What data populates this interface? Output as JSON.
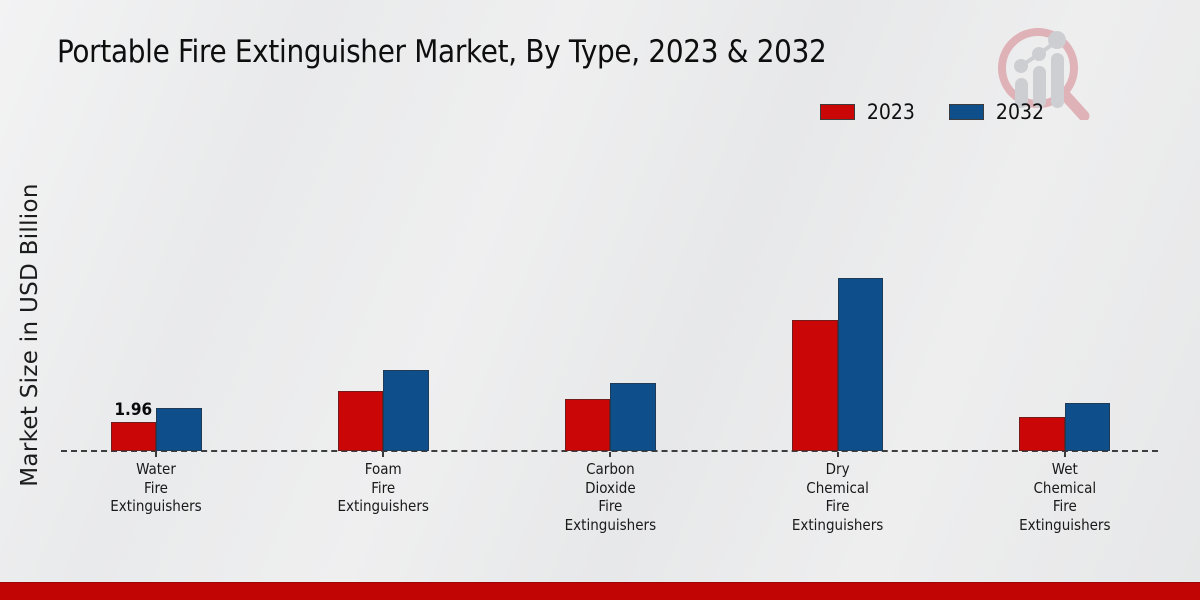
{
  "page": {
    "bottom_accent_color": "#c10505",
    "background_color": "#ebecec"
  },
  "branding": {
    "logo": "magnifier-bar-chart-logo",
    "logo_ring_color": "#c8737b",
    "logo_bar_color": "#b4b7be"
  },
  "chart_data": {
    "type": "bar",
    "title": "Portable Fire Extinguisher Market, By Type, 2023 & 2032",
    "xlabel": "",
    "ylabel": "Market Size in USD Billion",
    "categories": [
      [
        "Water",
        "Fire",
        "Extinguishers"
      ],
      [
        "Foam",
        "Fire",
        "Extinguishers"
      ],
      [
        "Carbon",
        "Dioxide",
        "Fire",
        "Extinguishers"
      ],
      [
        "Dry",
        "Chemical",
        "Fire",
        "Extinguishers"
      ],
      [
        "Wet",
        "Chemical",
        "Fire",
        "Extinguishers"
      ]
    ],
    "series": [
      {
        "name": "2023",
        "color": "#cb0606",
        "values": [
          1.96,
          4.1,
          3.55,
          8.95,
          2.32
        ]
      },
      {
        "name": "2032",
        "color": "#0d4e8b",
        "values": [
          2.92,
          5.5,
          4.62,
          11.8,
          3.26
        ]
      }
    ],
    "annotations": [
      {
        "series_index": 0,
        "category_index": 0,
        "text": "1.96"
      }
    ],
    "legend_position": "top-right",
    "grid": false,
    "baseline_style": "dashed",
    "y_tick_labels_visible": false,
    "ylim": [
      0,
      13
    ]
  }
}
